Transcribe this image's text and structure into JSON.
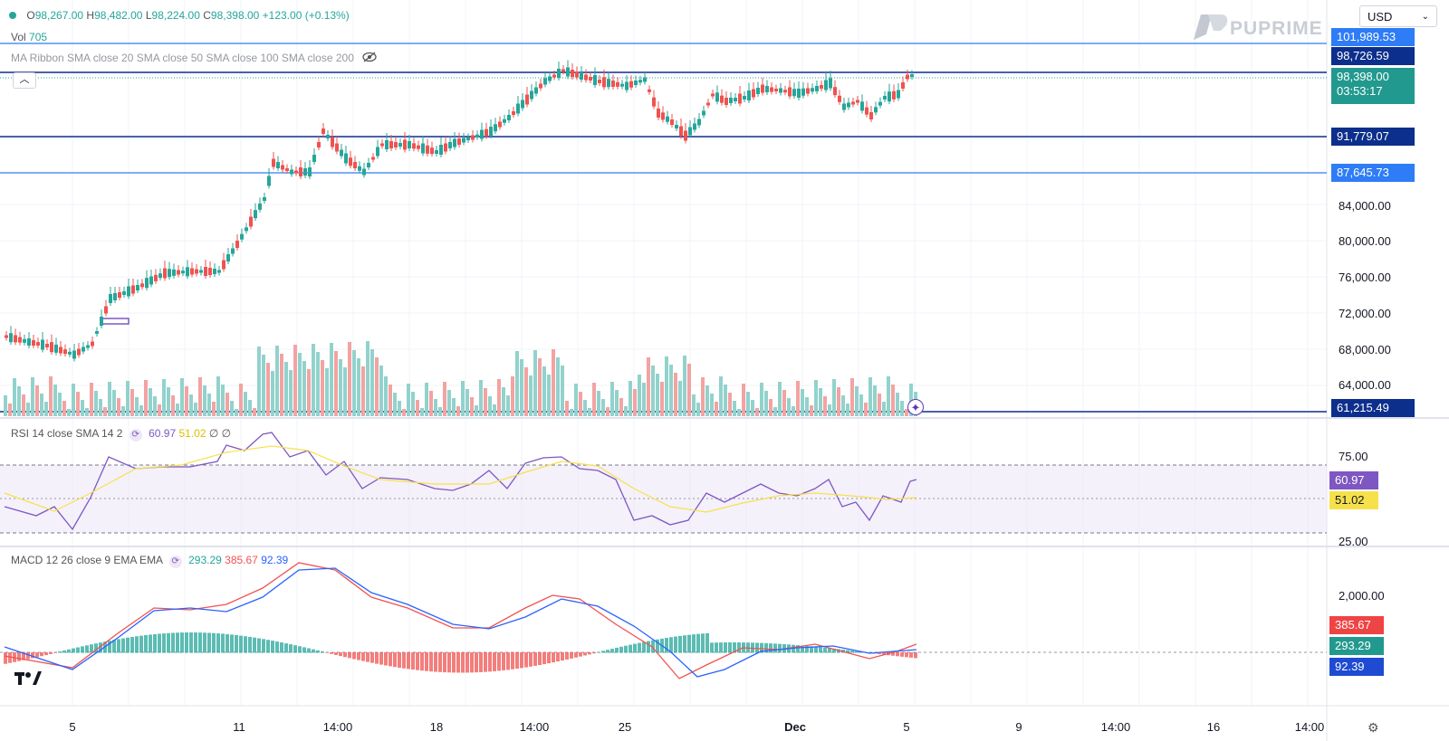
{
  "ohlc": {
    "open_label": "O",
    "open": "98,267.00",
    "high_label": "H",
    "high": "98,482.00",
    "low_label": "L",
    "low": "98,224.00",
    "close_label": "C",
    "close": "98,398.00",
    "change": "+123.00 (+0.13%)"
  },
  "vol": {
    "label": "Vol",
    "value": "705"
  },
  "ma_ribbon": {
    "label": "MA Ribbon SMA close 20 SMA close 50 SMA close 100 SMA close 200"
  },
  "currency": {
    "selected": "USD"
  },
  "brand": {
    "name": "PUPRIME"
  },
  "price_badges": {
    "b1": "101,989.53",
    "b2": "98,726.59",
    "b3": "98,398.00",
    "b3_timer": "03:53:17",
    "b4": "91,779.07",
    "b5": "87,645.73",
    "b6": "61,215.49"
  },
  "price_axis": [
    "84,000.00",
    "80,000.00",
    "76,000.00",
    "72,000.00",
    "68,000.00",
    "64,000.00"
  ],
  "rsi": {
    "label": "RSI 14 close SMA 14 2",
    "v1": "60.97",
    "v2": "51.02",
    "v3": "∅ ∅",
    "axis_top": "75.00",
    "axis_bottom": "25.00",
    "badge_rsi": "60.97",
    "badge_sma": "51.02"
  },
  "macd": {
    "label": "MACD 12 26 close 9 EMA EMA",
    "v1": "293.29",
    "v2": "385.67",
    "v3": "92.39",
    "axis": "2,000.00",
    "badge_red": "385.67",
    "badge_green": "293.29",
    "badge_blue": "92.39"
  },
  "x_axis": [
    "5",
    "11",
    "14:00",
    "18",
    "14:00",
    "25",
    "Dec",
    "5",
    "9",
    "14:00",
    "16",
    "14:00"
  ],
  "colors": {
    "up": "#26a69a",
    "down": "#ef5350",
    "level": "#0d2f8c",
    "level_light": "#2962ff",
    "rsi": "#7e57c2",
    "rsi_sma": "#f7e14b"
  },
  "icons": {
    "logo": "tradingview-logo-icon",
    "settings": "gear-icon",
    "add": "plus-circle-icon",
    "collapse": "chevron-up-icon",
    "hide": "eye-slash-icon",
    "symbol_dot": "status-dot-icon"
  }
}
